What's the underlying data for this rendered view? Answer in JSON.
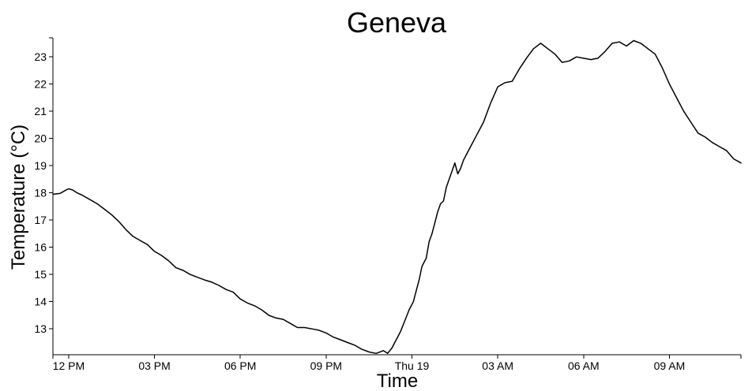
{
  "chart_data": {
    "type": "line",
    "title": "Geneva",
    "xlabel": "Time",
    "ylabel": "Temperature (°C)",
    "x_unit": "hours after 12 PM",
    "xlim": [
      -0.55,
      23.5
    ],
    "ylim": [
      12.05,
      23.7
    ],
    "x_ticks": [
      {
        "label": "12 PM",
        "value": 0
      },
      {
        "label": "03 PM",
        "value": 3
      },
      {
        "label": "06 PM",
        "value": 6
      },
      {
        "label": "09 PM",
        "value": 9
      },
      {
        "label": "Thu 19",
        "value": 12
      },
      {
        "label": "03 AM",
        "value": 15
      },
      {
        "label": "06 AM",
        "value": 18
      },
      {
        "label": "09 AM",
        "value": 21
      }
    ],
    "y_ticks": [
      13,
      14,
      15,
      16,
      17,
      18,
      19,
      20,
      21,
      22,
      23
    ],
    "series": [
      {
        "color": "#000000",
        "x": [
          -0.55,
          -0.3,
          -0.1,
          0.0,
          0.15,
          0.3,
          0.5,
          0.75,
          1.0,
          1.25,
          1.5,
          1.75,
          2.0,
          2.25,
          2.5,
          2.75,
          3.0,
          3.25,
          3.5,
          3.75,
          4.0,
          4.25,
          4.5,
          4.75,
          5.0,
          5.25,
          5.5,
          5.75,
          6.0,
          6.25,
          6.5,
          6.75,
          7.0,
          7.25,
          7.5,
          7.75,
          8.0,
          8.25,
          8.5,
          8.75,
          9.0,
          9.25,
          9.5,
          9.75,
          10.0,
          10.25,
          10.5,
          10.75,
          11.0,
          11.15,
          11.3,
          11.45,
          11.6,
          11.75,
          11.9,
          12.05,
          12.15,
          12.25,
          12.35,
          12.5,
          12.6,
          12.7,
          12.8,
          12.9,
          13.0,
          13.1,
          13.2,
          13.3,
          13.4,
          13.5,
          13.6,
          13.7,
          13.8,
          13.9,
          14.0,
          14.25,
          14.5,
          14.75,
          15.0,
          15.25,
          15.5,
          15.75,
          16.0,
          16.25,
          16.5,
          16.75,
          17.0,
          17.25,
          17.5,
          17.75,
          18.0,
          18.25,
          18.5,
          18.75,
          19.0,
          19.25,
          19.5,
          19.75,
          20.0,
          20.25,
          20.5,
          20.75,
          21.0,
          21.25,
          21.5,
          21.75,
          22.0,
          22.25,
          22.5,
          22.75,
          23.0,
          23.25,
          23.5
        ],
        "y": [
          17.95,
          17.98,
          18.1,
          18.15,
          18.1,
          18.0,
          17.9,
          17.75,
          17.6,
          17.4,
          17.2,
          16.95,
          16.65,
          16.4,
          16.25,
          16.1,
          15.85,
          15.7,
          15.5,
          15.25,
          15.15,
          15.0,
          14.9,
          14.8,
          14.72,
          14.6,
          14.45,
          14.35,
          14.1,
          13.95,
          13.85,
          13.7,
          13.5,
          13.4,
          13.35,
          13.2,
          13.05,
          13.05,
          13.0,
          12.95,
          12.85,
          12.7,
          12.6,
          12.5,
          12.4,
          12.25,
          12.15,
          12.1,
          12.2,
          12.1,
          12.3,
          12.6,
          12.9,
          13.3,
          13.7,
          14.0,
          14.4,
          14.8,
          15.3,
          15.6,
          16.2,
          16.5,
          16.9,
          17.3,
          17.6,
          17.7,
          18.2,
          18.5,
          18.8,
          19.1,
          18.7,
          18.9,
          19.2,
          19.4,
          19.6,
          20.1,
          20.6,
          21.3,
          21.9,
          22.05,
          22.1,
          22.55,
          22.95,
          23.3,
          23.5,
          23.3,
          23.1,
          22.8,
          22.85,
          23.0,
          22.95,
          22.9,
          22.95,
          23.2,
          23.5,
          23.55,
          23.4,
          23.6,
          23.5,
          23.3,
          23.1,
          22.6,
          22.0,
          21.5,
          21.0,
          20.6,
          20.2,
          20.05,
          19.85,
          19.7,
          19.55,
          19.25,
          19.1
        ]
      }
    ]
  }
}
